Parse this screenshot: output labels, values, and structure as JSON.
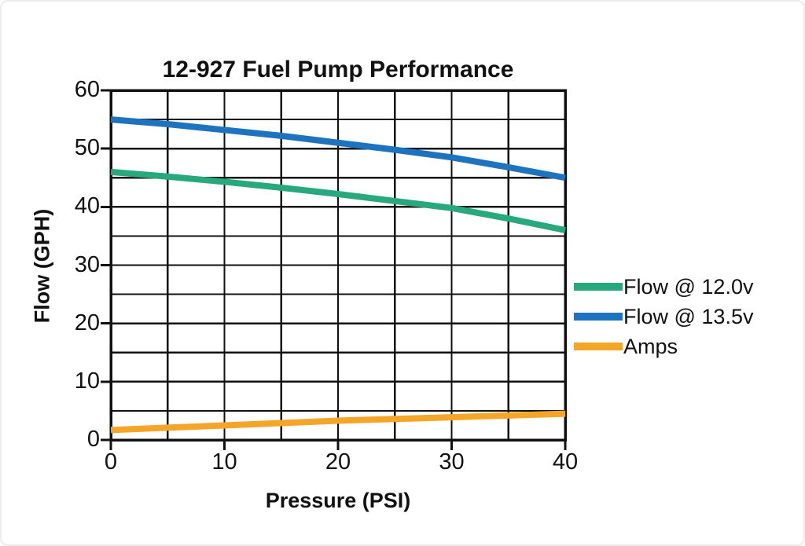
{
  "window": {
    "background_color": "#ffffff",
    "frame_border_color": "#ececec"
  },
  "chart_data": {
    "type": "line",
    "title": "12-927 Fuel Pump Performance",
    "xlabel": "Pressure (PSI)",
    "ylabel": "Flow (GPH)",
    "xlim": [
      0,
      40
    ],
    "ylim": [
      0,
      60
    ],
    "x_major_ticks": [
      0,
      10,
      20,
      30,
      40
    ],
    "y_major_ticks": [
      0,
      10,
      20,
      30,
      40,
      50,
      60
    ],
    "x_grid_step": 5,
    "y_grid_step": 5,
    "grid": true,
    "grid_color": "#111111",
    "axis_color": "#111111",
    "tick_label_color": "#111111",
    "legend_position": "right",
    "x": [
      0,
      5,
      10,
      15,
      20,
      25,
      30,
      35,
      40
    ],
    "series": [
      {
        "name": "Flow @ 12.0v",
        "color": "#28a87d",
        "values": [
          46,
          45.2,
          44.3,
          43.3,
          42.2,
          41,
          39.8,
          38,
          36
        ]
      },
      {
        "name": "Flow @ 13.5v",
        "color": "#1e73be",
        "values": [
          55,
          54.2,
          53.2,
          52.2,
          51,
          49.8,
          48.5,
          46.8,
          45
        ]
      },
      {
        "name": "Amps",
        "color": "#f5a528",
        "values": [
          1.7,
          2.1,
          2.5,
          2.9,
          3.3,
          3.6,
          3.9,
          4.2,
          4.5
        ]
      }
    ]
  }
}
